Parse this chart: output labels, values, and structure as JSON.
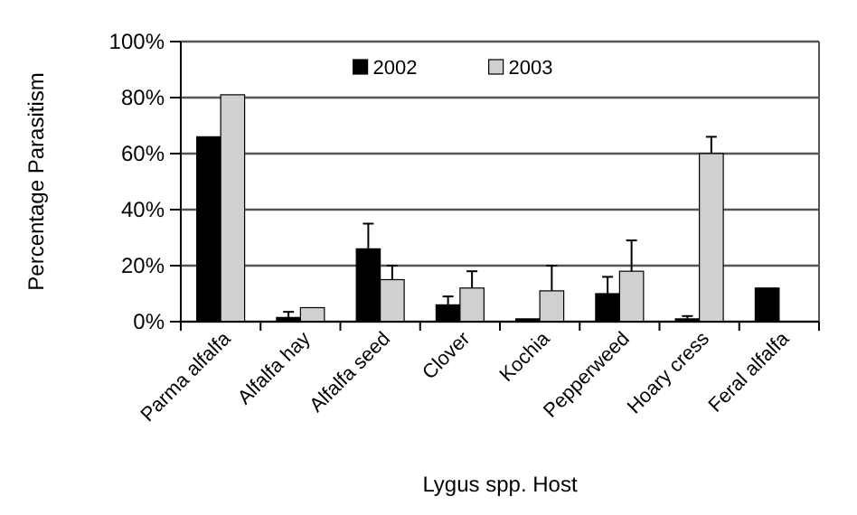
{
  "chart_data": {
    "type": "bar",
    "ylabel": "Percentage Parasitism",
    "xlabel": "Lygus spp. Host",
    "categories": [
      "Parma alfalfa",
      "Alfalfa hay",
      "Alfalfa seed",
      "Clover",
      "Kochia",
      "Pepperweed",
      "Hoary cress",
      "Feral alfalfa"
    ],
    "series": [
      {
        "name": "2002",
        "color": "#000000",
        "values": [
          66,
          1.5,
          26,
          6,
          1,
          10,
          1,
          12
        ],
        "errors": [
          null,
          [
            1.5,
            3.5
          ],
          [
            26,
            35
          ],
          [
            6,
            9
          ],
          null,
          [
            10,
            16
          ],
          [
            1,
            2
          ],
          null
        ]
      },
      {
        "name": "2003",
        "color": "#d0d0d0",
        "values": [
          81,
          5,
          15,
          12,
          11,
          18,
          60,
          null
        ],
        "errors": [
          null,
          null,
          [
            15,
            20
          ],
          [
            12,
            18
          ],
          [
            11,
            20
          ],
          [
            18,
            29
          ],
          [
            60,
            66
          ],
          null
        ]
      }
    ],
    "ylim": [
      0,
      100
    ],
    "yticks": [
      {
        "value": 0,
        "label": "0%"
      },
      {
        "value": 20,
        "label": "20%"
      },
      {
        "value": 40,
        "label": "40%"
      },
      {
        "value": 60,
        "label": "60%"
      },
      {
        "value": 80,
        "label": "80%"
      },
      {
        "value": 100,
        "label": "100%"
      }
    ],
    "grid": "y",
    "legend": "top"
  }
}
